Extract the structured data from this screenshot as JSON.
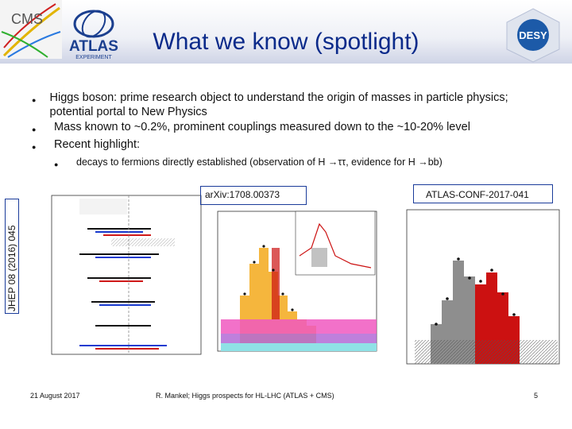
{
  "header": {
    "title": "What we know (spotlight)",
    "logo_cms_text": "CMS",
    "logo_atlas_text": "ATLAS",
    "logo_atlas_sub": "EXPERIMENT",
    "logo_desy_text": "DESY"
  },
  "bullets": [
    {
      "text": "Higgs boson: prime research object to understand the origin of masses in particle physics; potential portal to New Physics"
    },
    {
      "text": "Mass known to ~0.2%, prominent couplings measured down to the ~10-20% level"
    },
    {
      "text": "Recent highlight:"
    }
  ],
  "sub_bullet": "decays to fermions directly established (observation of H →ττ, evidence for H →bb)",
  "labels": {
    "left_vertical": "JHEP 08 (2016) 045",
    "middle": "arXiv:1708.00373",
    "right": "ATLAS-CONF-2017-041"
  },
  "footer": {
    "date": "21 August 2017",
    "author": "R. Mankel; Higgs prospects for HL-LHC (ATLAS + CMS)",
    "page": "5"
  },
  "colors": {
    "title": "#0b2a8a",
    "cms_red": "#d02020",
    "atlas_blue": "#1b3f8f",
    "desy_blue": "#1c5aa8",
    "signal_red": "#cc1111",
    "z_orange": "#f5b63d",
    "w_green": "#59c259",
    "diboson_gray": "#8e8e8e",
    "qcd_pink": "#f058c0",
    "bkg_cyan": "#8fe1e6"
  },
  "icons": [
    "cms-logo-icon",
    "atlas-logo-icon",
    "desy-logo-icon",
    "bullet-dot-icon"
  ]
}
